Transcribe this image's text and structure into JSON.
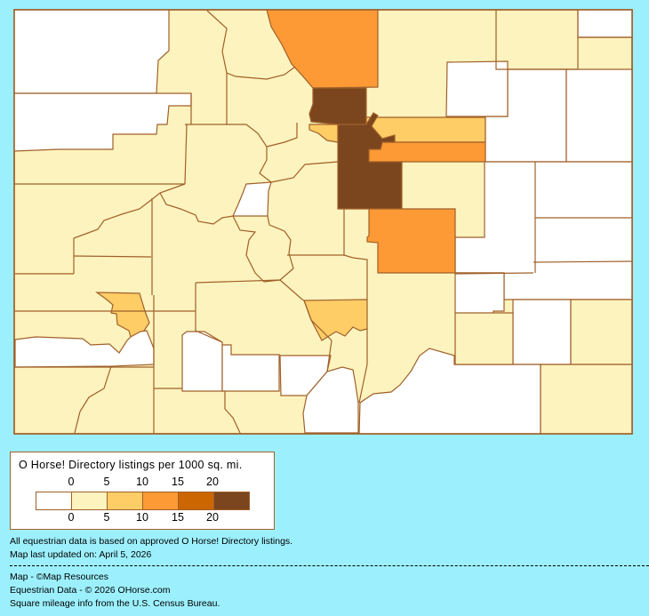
{
  "map": {
    "background": "#9cf0fd",
    "border_color": "#a0602a",
    "base_class": 1,
    "regions_classes": [
      0,
      0,
      3,
      5,
      2,
      2,
      3,
      5,
      0,
      0,
      0,
      0,
      0,
      0,
      0,
      1,
      1,
      1,
      0,
      3,
      2,
      2,
      0,
      0,
      0,
      0,
      0,
      0
    ]
  },
  "legend": {
    "title": "O Horse! Directory listings per 1000 sq. mi.",
    "top_labels": [
      "0",
      "5",
      "10",
      "15",
      "20"
    ],
    "bottom_labels": [
      "0",
      "5",
      "10",
      "15",
      "20"
    ],
    "classes": [
      {
        "range": "0",
        "color": "#ffffff"
      },
      {
        "range": "0-5",
        "color": "#fdf3be"
      },
      {
        "range": "5-10",
        "color": "#fecd66"
      },
      {
        "range": "10-15",
        "color": "#fd9a35"
      },
      {
        "range": "15-20",
        "color": "#cc6600"
      },
      {
        "range": "20+",
        "color": "#7b461e"
      }
    ]
  },
  "notes": {
    "line1": "All equestrian data is based on approved O Horse! Directory listings.",
    "line2": "Map last updated on: April 5, 2026"
  },
  "credits": {
    "line1": "Map - ©Map Resources",
    "line2": "Equestrian Data - © 2026 OHorse.com",
    "line3": "Square mileage info from the U.S. Census Bureau."
  }
}
